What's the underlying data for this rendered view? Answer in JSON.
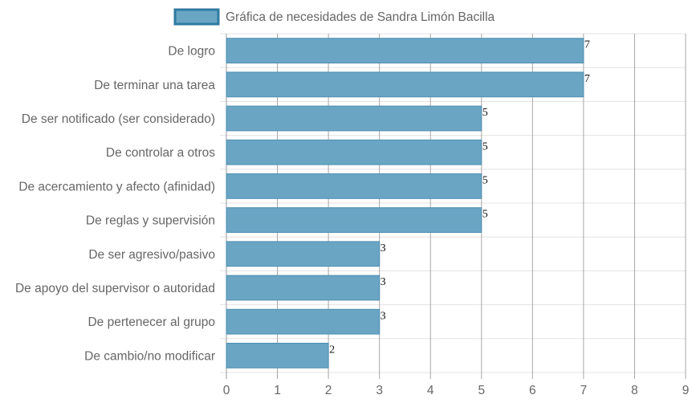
{
  "chart_data": {
    "type": "bar",
    "orientation": "horizontal",
    "categories": [
      "De logro",
      "De terminar una tarea",
      "De ser notificado (ser considerado)",
      "De controlar a otros",
      "De acercamiento y afecto (afinidad)",
      "De reglas y supervisión",
      "De ser agresivo/pasivo",
      "De apoyo del supervisor o autoridad",
      "De pertenecer al grupo",
      "De cambio/no modificar"
    ],
    "series": [
      {
        "name": "Gráfica de necesidades de Sandra Limón Bacilla",
        "values": [
          7,
          7,
          5,
          5,
          5,
          5,
          3,
          3,
          3,
          2
        ]
      }
    ],
    "xlim": [
      0,
      9
    ],
    "xticks": [
      "0",
      "1",
      "2",
      "3",
      "4",
      "5",
      "6",
      "7",
      "8",
      "9"
    ],
    "grid": true,
    "legend_position": "top",
    "colors": {
      "bar_fill": "#6aa5c4",
      "bar_stroke": "#4f8fb1",
      "legend_border": "#2f7aa1",
      "grid": "#e3e3e3",
      "grid_major": "#8a8a8a",
      "text": "#666666"
    }
  }
}
